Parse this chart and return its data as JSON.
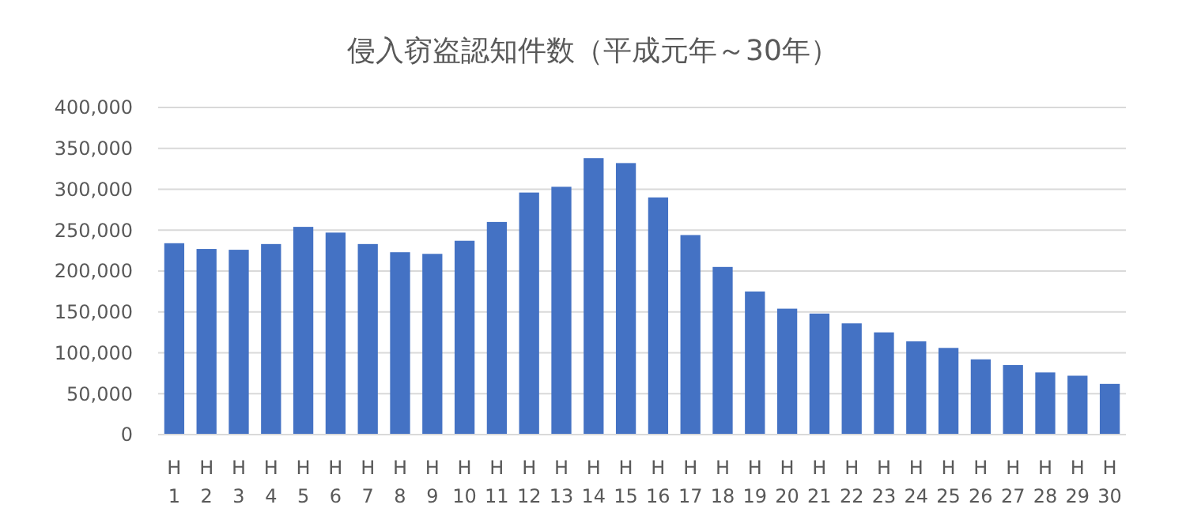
{
  "chart_data": {
    "type": "bar",
    "title": "侵入窃盗認知件数（平成元年～30年）",
    "categories": [
      "H\n1",
      "H\n2",
      "H\n3",
      "H\n4",
      "H\n5",
      "H\n6",
      "H\n7",
      "H\n8",
      "H\n9",
      "H\n10",
      "H\n11",
      "H\n12",
      "H\n13",
      "H\n14",
      "H\n15",
      "H\n16",
      "H\n17",
      "H\n18",
      "H\n19",
      "H\n20",
      "H\n21",
      "H\n22",
      "H\n23",
      "H\n24",
      "H\n25",
      "H\n26",
      "H\n27",
      "H\n28",
      "H\n29",
      "H\n30"
    ],
    "values": [
      234000,
      227000,
      226000,
      233000,
      254000,
      247000,
      233000,
      223000,
      221000,
      237000,
      260000,
      296000,
      303000,
      338000,
      332000,
      290000,
      244000,
      205000,
      175000,
      154000,
      148000,
      136000,
      125000,
      114000,
      106000,
      92000,
      85000,
      76000,
      72000,
      62000
    ],
    "color": "#4472c4",
    "ylim": [
      0,
      400000
    ],
    "yticks": [
      {
        "value": 0,
        "label": "0"
      },
      {
        "value": 50000,
        "label": "50,000"
      },
      {
        "value": 100000,
        "label": "100,000"
      },
      {
        "value": 150000,
        "label": "150,000"
      },
      {
        "value": 200000,
        "label": "200,000"
      },
      {
        "value": 250000,
        "label": "250,000"
      },
      {
        "value": 300000,
        "label": "300,000"
      },
      {
        "value": 350000,
        "label": "350,000"
      },
      {
        "value": 400000,
        "label": "400,000"
      }
    ],
    "grid": "y"
  }
}
